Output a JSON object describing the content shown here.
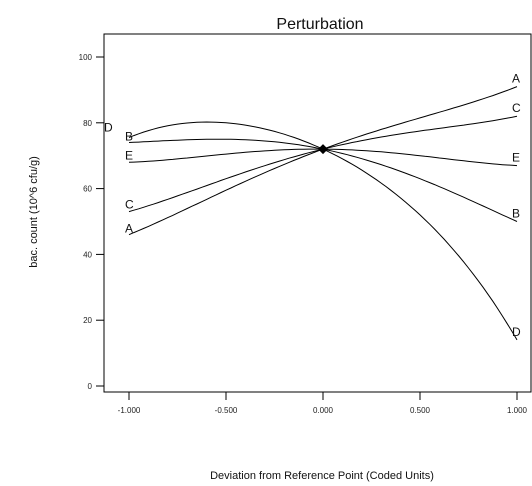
{
  "chart_data": {
    "type": "line",
    "title": "Perturbation",
    "xlabel": "Deviation from Reference Point (Coded Units)",
    "ylabel": "bac. count (10^6 cfu/g)",
    "xlim": [
      -1,
      1
    ],
    "ylim": [
      0,
      100
    ],
    "x_ticks": [
      -1,
      -0.5,
      0,
      0.5,
      1
    ],
    "x_tick_labels": [
      "-1.000",
      "-0.500",
      "0.000",
      "0.500",
      "1.000"
    ],
    "y_ticks": [
      0,
      20,
      40,
      60,
      80,
      100
    ],
    "y_tick_labels": [
      "0",
      "20",
      "40",
      "60",
      "80",
      "100"
    ],
    "grid": false,
    "reference_point": {
      "x": 0,
      "y": 72
    },
    "series": [
      {
        "name": "A",
        "x": [
          -1,
          -0.5,
          0,
          0.5,
          1
        ],
        "values": [
          46,
          59.5,
          72,
          81.5,
          91
        ]
      },
      {
        "name": "B",
        "x": [
          -1,
          -0.5,
          0,
          0.5,
          1
        ],
        "values": [
          74,
          75,
          72,
          63,
          50
        ]
      },
      {
        "name": "C",
        "x": [
          -1,
          -0.5,
          0,
          0.5,
          1
        ],
        "values": [
          53,
          63,
          72,
          77.5,
          82
        ]
      },
      {
        "name": "D",
        "x": [
          -1,
          -0.5,
          0,
          0.5,
          1
        ],
        "values": [
          75.5,
          80,
          72,
          52,
          14
        ]
      },
      {
        "name": "E",
        "x": [
          -1,
          -0.5,
          0,
          0.5,
          1
        ],
        "values": [
          68,
          70.5,
          72,
          70,
          67
        ]
      }
    ]
  }
}
